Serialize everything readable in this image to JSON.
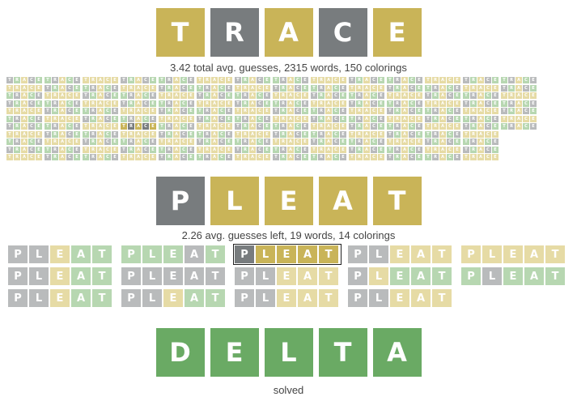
{
  "colors": {
    "green": "#6aaa64",
    "yellow": "#c9b458",
    "gray": "#787c7e",
    "light_green": "#b7d7b1",
    "light_yellow": "#e6dba5",
    "light_gray": "#b9bbbc"
  },
  "guess1": {
    "word": [
      "T",
      "R",
      "A",
      "C",
      "E"
    ],
    "colors": [
      "yellow",
      "gray",
      "yellow",
      "gray",
      "yellow"
    ],
    "caption": "3.42 total avg. guesses, 2315 words, 150 colorings",
    "chip_word": [
      "T",
      "R",
      "A",
      "C",
      "E"
    ],
    "chip_count": 150,
    "highlighted_index": 39,
    "highlighted_colors": [
      "yellow",
      "gray",
      "yellow",
      "gray",
      "yellow"
    ]
  },
  "guess2": {
    "word": [
      "P",
      "L",
      "E",
      "A",
      "T"
    ],
    "colors": [
      "gray",
      "yellow",
      "yellow",
      "yellow",
      "yellow"
    ],
    "caption": "2.26 avg. guesses left, 19 words, 14 colorings",
    "chip_word": [
      "P",
      "L",
      "E",
      "A",
      "T"
    ],
    "chips": [
      [
        "gray",
        "gray",
        "yellow",
        "green",
        "green"
      ],
      [
        "gray",
        "gray",
        "yellow",
        "green",
        "green"
      ],
      [
        "gray",
        "gray",
        "yellow",
        "green",
        "green"
      ],
      [
        "green",
        "green",
        "green",
        "gray",
        "green"
      ],
      [
        "gray",
        "gray",
        "gray",
        "gray",
        "gray"
      ],
      [
        "gray",
        "gray",
        "yellow",
        "green",
        "green"
      ],
      [
        "gray",
        "yellow",
        "yellow",
        "yellow",
        "yellow"
      ],
      [
        "gray",
        "gray",
        "yellow",
        "yellow",
        "yellow"
      ],
      [
        "gray",
        "gray",
        "yellow",
        "yellow",
        "yellow"
      ],
      [
        "gray",
        "gray",
        "yellow",
        "yellow",
        "yellow"
      ],
      [
        "gray",
        "yellow",
        "green",
        "green",
        "green"
      ],
      [
        "gray",
        "gray",
        "yellow",
        "yellow",
        "yellow"
      ],
      [
        "yellow",
        "yellow",
        "yellow",
        "yellow",
        "yellow"
      ],
      [
        "green",
        "gray",
        "green",
        "green",
        "green"
      ]
    ],
    "selected_index": 6
  },
  "guess3": {
    "word": [
      "D",
      "E",
      "L",
      "T",
      "A"
    ],
    "colors": [
      "green",
      "green",
      "green",
      "green",
      "green"
    ],
    "caption": "solved"
  }
}
